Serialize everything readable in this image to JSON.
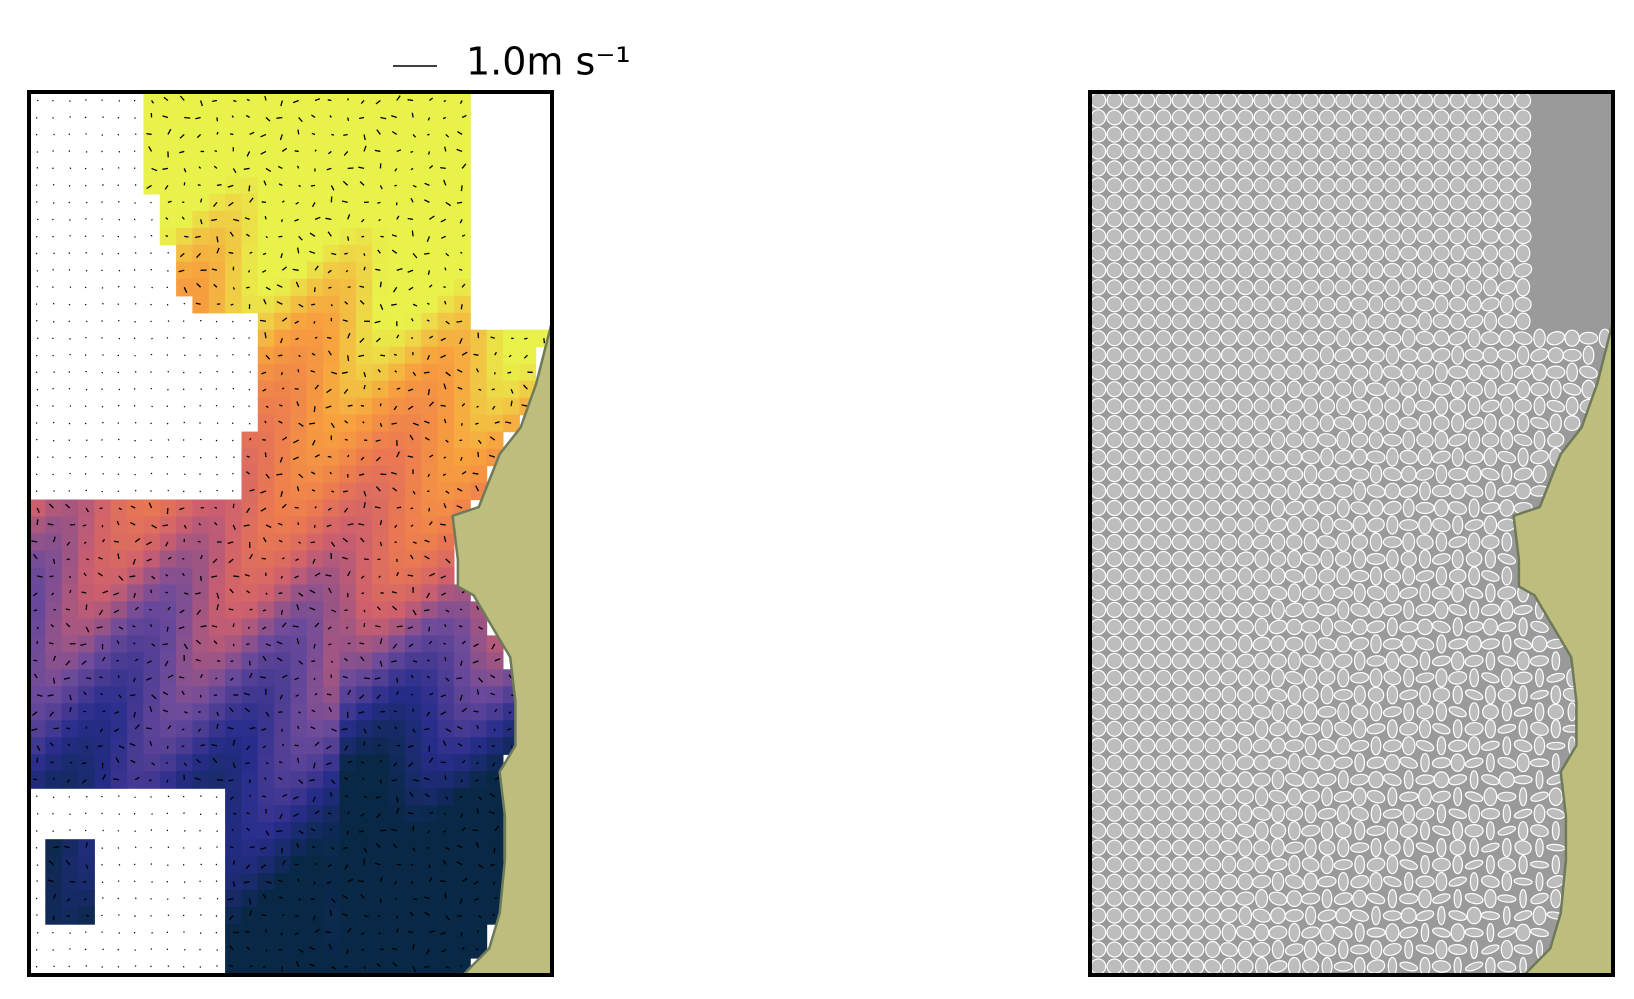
{
  "quiver_key": {
    "label": "1.0m s⁻¹"
  }
}
